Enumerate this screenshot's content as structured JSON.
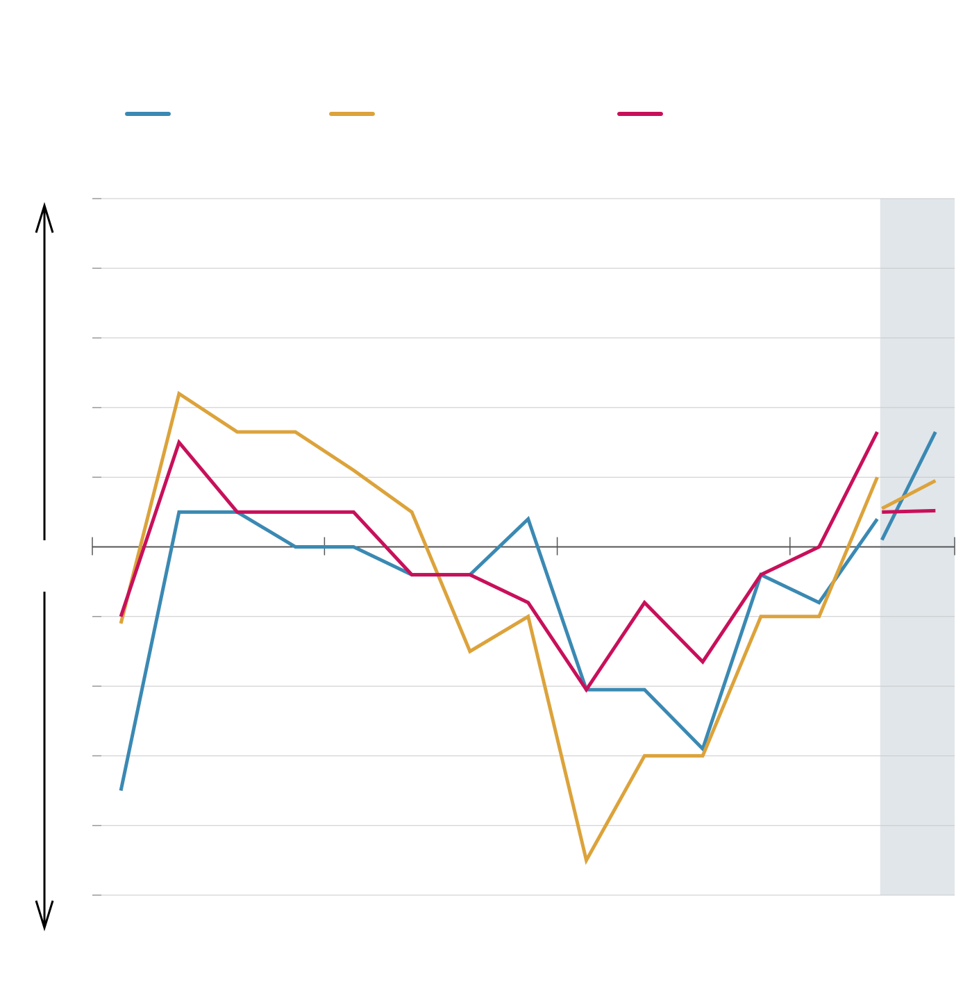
{
  "chart_data": {
    "type": "line",
    "x": [
      0,
      1,
      2,
      3,
      4,
      5,
      6,
      7,
      8,
      9,
      10,
      11,
      12,
      13,
      13.04,
      13.08,
      14
    ],
    "series": [
      {
        "color": "#3a89b3",
        "values": [
          -3.5,
          0.5,
          0.5,
          0,
          0,
          -0.4,
          -0.4,
          0.4,
          -2.05,
          -2.05,
          -2.9,
          -0.4,
          -0.8,
          0.4,
          null,
          0.1,
          1.65
        ]
      },
      {
        "color": "#dca33b",
        "values": [
          -1.1,
          2.2,
          1.65,
          1.65,
          1.1,
          0.5,
          -1.5,
          -1.0,
          -4.5,
          -3.0,
          -3.0,
          -1.0,
          -1.0,
          1.0,
          null,
          0.55,
          0.95
        ]
      },
      {
        "color": "#c8105a",
        "values": [
          -1.0,
          1.5,
          0.5,
          0.5,
          0.5,
          -0.4,
          -0.4,
          -0.8,
          -2.05,
          -0.8,
          -1.65,
          -0.4,
          0,
          1.65,
          null,
          0.5,
          0.52
        ]
      }
    ],
    "xlim": [
      -0.49,
      14.33
    ],
    "xticks": [
      -0.49,
      3.5,
      7.5,
      11.5,
      14.33
    ],
    "ylim": [
      -5,
      5
    ],
    "yticks": [
      -5,
      -4,
      -3,
      -2,
      -1,
      0,
      1,
      2,
      3,
      4,
      5
    ],
    "grid": true,
    "highlight": {
      "xlim": [
        13.05,
        14.33
      ],
      "color": "#e1e6ea"
    }
  }
}
